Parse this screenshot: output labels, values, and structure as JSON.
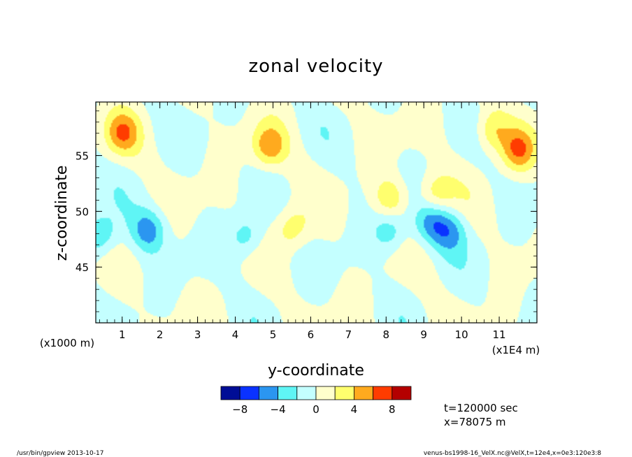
{
  "chart_data": {
    "type": "heatmap",
    "title": "zonal velocity",
    "xlabel": "y-coordinate",
    "ylabel": "z-coordinate",
    "x_units_left": "(x1000 m)",
    "x_units_right": "(x1E4 m)",
    "xlim": [
      0.3,
      12.0
    ],
    "ylim": [
      40.0,
      59.8
    ],
    "x_ticks": [
      "1",
      "2",
      "3",
      "4",
      "5",
      "6",
      "7",
      "8",
      "9",
      "10",
      "11"
    ],
    "y_ticks": [
      "45",
      "50",
      "55"
    ],
    "x_tick_values": [
      1,
      2,
      3,
      4,
      5,
      6,
      7,
      8,
      9,
      10,
      11
    ],
    "y_tick_values": [
      45,
      50,
      55
    ],
    "colorbar": {
      "levels": [
        -10,
        -8,
        -6,
        -4,
        -2,
        0,
        2,
        4,
        6,
        8,
        10
      ],
      "colors": [
        "#000d96",
        "#0a32ff",
        "#2b96f0",
        "#5ff5f5",
        "#c4ffff",
        "#ffffcc",
        "#ffff6e",
        "#ffaa1e",
        "#ff3c00",
        "#b40000"
      ],
      "tick_labels": [
        "−8",
        "−4",
        "0",
        "4",
        "8"
      ],
      "tick_values": [
        -8,
        -4,
        0,
        4,
        8
      ]
    },
    "features": [
      {
        "y": 1.0,
        "z": 57.0,
        "value": 5.0
      },
      {
        "y": 4.9,
        "z": 55.8,
        "value": 5.0
      },
      {
        "y": 11.5,
        "z": 55.5,
        "value": 5.5
      },
      {
        "y": 10.8,
        "z": 57.2,
        "value": 4.0
      },
      {
        "y": 1.7,
        "z": 48.3,
        "value": -5.0
      },
      {
        "y": 0.4,
        "z": 47.8,
        "value": -4.5
      },
      {
        "y": 9.2,
        "z": 49.0,
        "value": -4.5
      },
      {
        "y": 9.7,
        "z": 48.2,
        "value": -4.0
      },
      {
        "y": 8.1,
        "z": 48.2,
        "value": -3.5
      },
      {
        "y": 4.3,
        "z": 47.7,
        "value": -3.5
      },
      {
        "y": 8.1,
        "z": 51.2,
        "value": 4.0
      },
      {
        "y": 9.3,
        "z": 51.5,
        "value": 3.5
      },
      {
        "y": 5.5,
        "z": 48.5,
        "value": 3.5
      }
    ],
    "grid": false
  },
  "annotations": {
    "time": "t=120000 sec",
    "x_position": "x=78075 m"
  },
  "footer": {
    "left": "/usr/bin/gpview   2013-10-17",
    "right": "venus-bs1998-16_VelX.nc@VelX,t=12e4,x=0e3:120e3:8"
  }
}
